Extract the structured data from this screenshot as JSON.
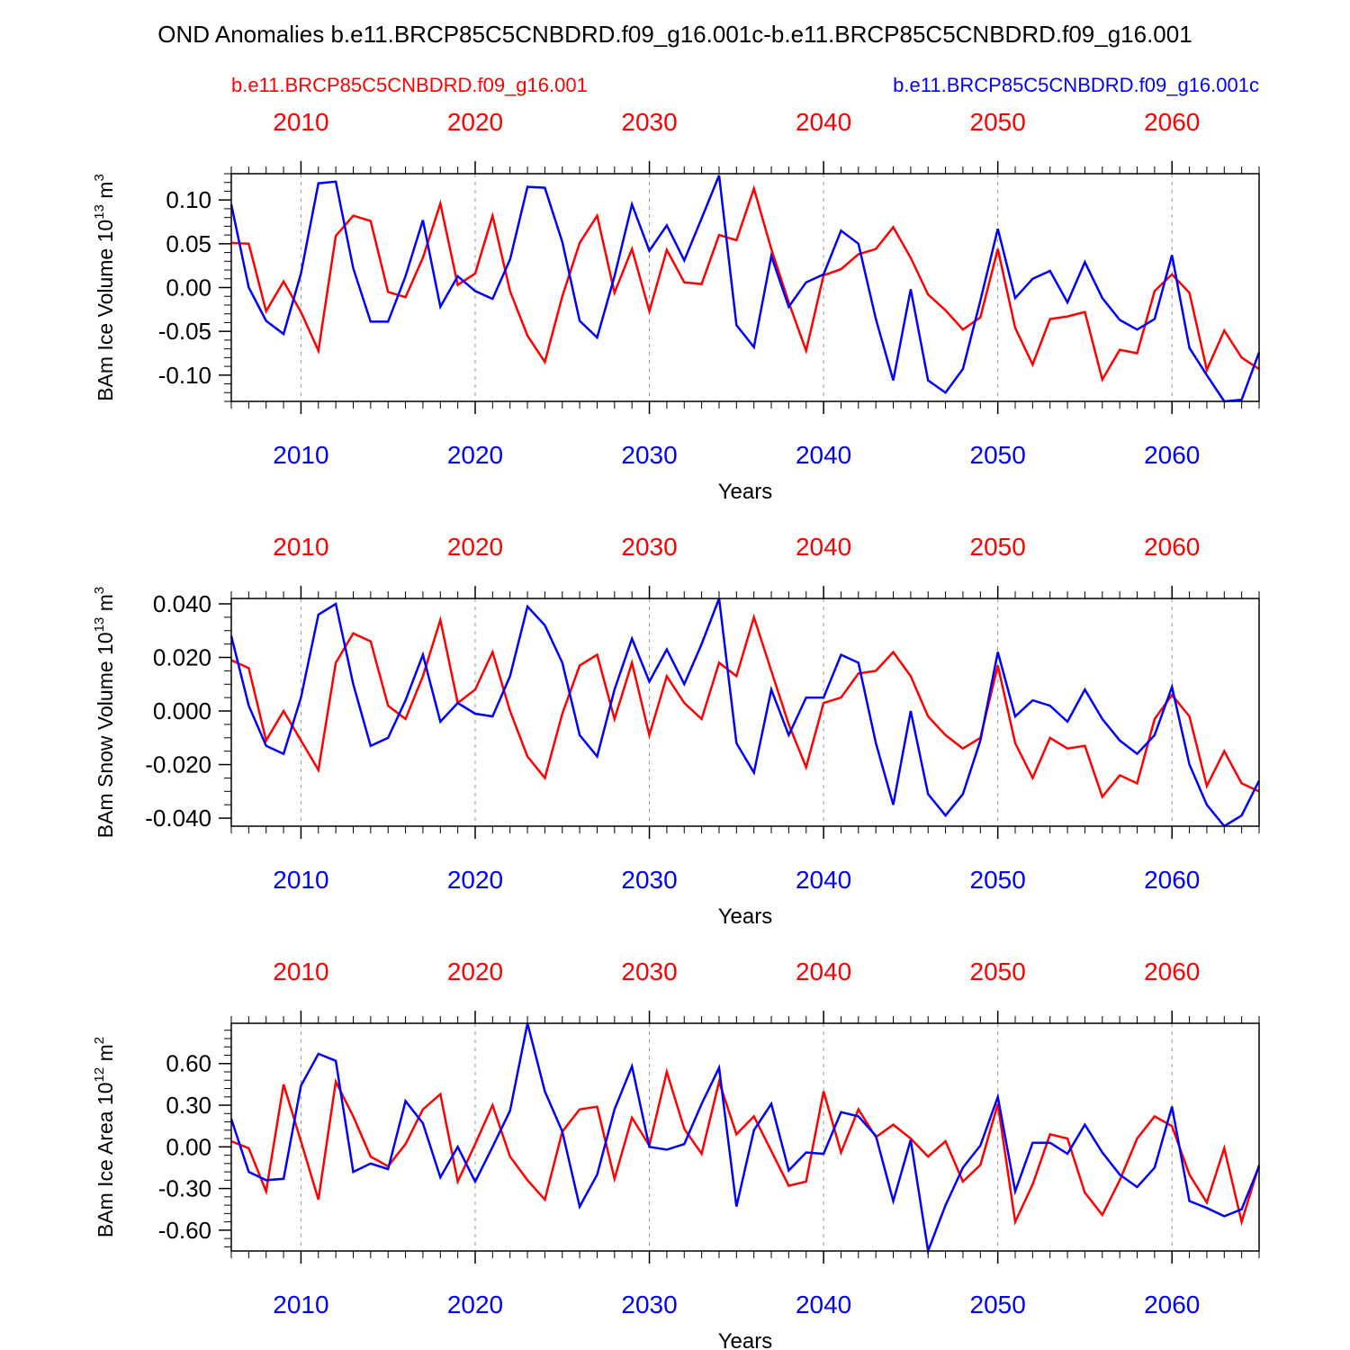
{
  "header": {
    "title": "OND Anomalies b.e11.BRCP85C5CNBDRD.f09_g16.001c-b.e11.BRCP85C5CNBDRD.f09_g16.001",
    "legend_left": "b.e11.BRCP85C5CNBDRD.f09_g16.001",
    "legend_right": "b.e11.BRCP85C5CNBDRD.f09_g16.001c"
  },
  "colors": {
    "red": "#ff0000",
    "blue": "#0000ff",
    "axis": "#000000",
    "grid": "#999999"
  },
  "chart_data": [
    {
      "type": "line",
      "ylabel_main": "BAm Ice Volume 10",
      "ylabel_exp": "13",
      "ylabel_unit": " m",
      "ylabel_unit_exp": "3",
      "xlabel": "Years",
      "xlim": [
        2006,
        2065
      ],
      "ylim": [
        -0.13,
        0.13
      ],
      "yticks": [
        -0.1,
        -0.05,
        0.0,
        0.05,
        0.1
      ],
      "ytick_labels": [
        "-0.10",
        "-0.05",
        "0.00",
        "0.05",
        "0.10"
      ],
      "yminor_step": 0.01,
      "xticks": [
        2010,
        2020,
        2030,
        2040,
        2050,
        2060
      ],
      "xtick_labels": [
        "2010",
        "2020",
        "2030",
        "2040",
        "2050",
        "2060"
      ],
      "x_start": 2006,
      "series": [
        {
          "name": "b.e11.BRCP85C5CNBDRD.f09_g16.001",
          "color": "#ff0000",
          "values": [
            0.051,
            0.05,
            -0.027,
            0.007,
            -0.028,
            -0.072,
            0.059,
            0.082,
            0.076,
            -0.005,
            -0.011,
            0.034,
            0.096,
            0.003,
            0.016,
            0.082,
            -0.004,
            -0.055,
            -0.085,
            -0.01,
            0.051,
            0.082,
            -0.006,
            0.044,
            -0.027,
            0.043,
            0.006,
            0.004,
            0.06,
            0.054,
            0.113,
            0.044,
            -0.017,
            -0.072,
            0.014,
            0.021,
            0.038,
            0.044,
            0.069,
            0.034,
            -0.008,
            -0.026,
            -0.048,
            -0.034,
            0.044,
            -0.046,
            -0.088,
            -0.036,
            -0.033,
            -0.028,
            -0.105,
            -0.071,
            -0.075,
            -0.004,
            0.015,
            -0.006,
            -0.094,
            -0.049,
            -0.08,
            -0.093
          ]
        },
        {
          "name": "b.e11.BRCP85C5CNBDRD.f09_g16.001c",
          "color": "#0000ff",
          "values": [
            0.095,
            0.0,
            -0.038,
            -0.053,
            0.016,
            0.119,
            0.121,
            0.022,
            -0.039,
            -0.039,
            0.013,
            0.077,
            -0.022,
            0.013,
            -0.004,
            -0.013,
            0.032,
            0.115,
            0.114,
            0.052,
            -0.038,
            -0.057,
            0.013,
            0.095,
            0.042,
            0.071,
            0.031,
            0.079,
            0.128,
            -0.043,
            -0.068,
            0.036,
            -0.022,
            0.006,
            0.015,
            0.065,
            0.05,
            -0.036,
            -0.106,
            -0.002,
            -0.106,
            -0.12,
            -0.093,
            -0.015,
            0.067,
            -0.012,
            0.01,
            0.019,
            -0.017,
            0.029,
            -0.012,
            -0.037,
            -0.048,
            -0.036,
            0.037,
            -0.069,
            -0.1,
            -0.131,
            -0.128,
            -0.074
          ]
        }
      ]
    },
    {
      "type": "line",
      "ylabel_main": "BAm Snow Volume 10",
      "ylabel_exp": "13",
      "ylabel_unit": " m",
      "ylabel_unit_exp": "3",
      "xlabel": "Years",
      "xlim": [
        2006,
        2065
      ],
      "ylim": [
        -0.043,
        0.042
      ],
      "yticks": [
        -0.04,
        -0.02,
        0.0,
        0.02,
        0.04
      ],
      "ytick_labels": [
        "-0.040",
        "-0.020",
        "0.000",
        "0.020",
        "0.040"
      ],
      "yminor_step": 0.005,
      "xticks": [
        2010,
        2020,
        2030,
        2040,
        2050,
        2060
      ],
      "xtick_labels": [
        "2010",
        "2020",
        "2030",
        "2040",
        "2050",
        "2060"
      ],
      "x_start": 2006,
      "series": [
        {
          "name": "b.e11.BRCP85C5CNBDRD.f09_g16.001",
          "color": "#ff0000",
          "values": [
            0.019,
            0.016,
            -0.011,
            0.0,
            -0.011,
            -0.022,
            0.018,
            0.029,
            0.026,
            0.002,
            -0.003,
            0.013,
            0.034,
            0.003,
            0.008,
            0.022,
            0.0,
            -0.017,
            -0.025,
            -0.001,
            0.017,
            0.021,
            -0.003,
            0.018,
            -0.009,
            0.013,
            0.003,
            -0.003,
            0.018,
            0.013,
            0.035,
            0.015,
            -0.005,
            -0.021,
            0.003,
            0.005,
            0.014,
            0.015,
            0.022,
            0.013,
            -0.002,
            -0.009,
            -0.014,
            -0.01,
            0.017,
            -0.012,
            -0.025,
            -0.01,
            -0.014,
            -0.013,
            -0.032,
            -0.024,
            -0.027,
            -0.003,
            0.006,
            -0.002,
            -0.028,
            -0.015,
            -0.027,
            -0.03
          ]
        },
        {
          "name": "b.e11.BRCP85C5CNBDRD.f09_g16.001c",
          "color": "#0000ff",
          "values": [
            0.028,
            0.002,
            -0.013,
            -0.016,
            0.005,
            0.036,
            0.04,
            0.01,
            -0.013,
            -0.01,
            0.004,
            0.021,
            -0.004,
            0.003,
            -0.001,
            -0.002,
            0.013,
            0.039,
            0.032,
            0.018,
            -0.009,
            -0.017,
            0.008,
            0.027,
            0.011,
            0.023,
            0.01,
            0.025,
            0.042,
            -0.012,
            -0.023,
            0.008,
            -0.009,
            0.005,
            0.005,
            0.021,
            0.018,
            -0.012,
            -0.035,
            0.0,
            -0.031,
            -0.039,
            -0.031,
            -0.011,
            0.022,
            -0.002,
            0.004,
            0.002,
            -0.004,
            0.008,
            -0.003,
            -0.011,
            -0.016,
            -0.009,
            0.009,
            -0.02,
            -0.035,
            -0.043,
            -0.039,
            -0.026
          ]
        }
      ]
    },
    {
      "type": "line",
      "ylabel_main": "BAm Ice Area 10",
      "ylabel_exp": "12",
      "ylabel_unit": " m",
      "ylabel_unit_exp": "2",
      "xlabel": "Years",
      "xlim": [
        2006,
        2065
      ],
      "ylim": [
        -0.75,
        0.89
      ],
      "yticks": [
        -0.6,
        -0.3,
        0.0,
        0.3,
        0.6
      ],
      "ytick_labels": [
        "-0.60",
        "-0.30",
        "0.00",
        "0.30",
        "0.60"
      ],
      "yminor_step": 0.06,
      "xticks": [
        2010,
        2020,
        2030,
        2040,
        2050,
        2060
      ],
      "xtick_labels": [
        "2010",
        "2020",
        "2030",
        "2040",
        "2050",
        "2060"
      ],
      "x_start": 2006,
      "series": [
        {
          "name": "b.e11.BRCP85C5CNBDRD.f09_g16.001",
          "color": "#ff0000",
          "values": [
            0.04,
            -0.01,
            -0.32,
            0.45,
            0.04,
            -0.38,
            0.47,
            0.22,
            -0.07,
            -0.14,
            0.02,
            0.27,
            0.38,
            -0.25,
            0.02,
            0.3,
            -0.07,
            -0.24,
            -0.38,
            0.11,
            0.27,
            0.29,
            -0.23,
            0.21,
            0.01,
            0.54,
            0.13,
            -0.05,
            0.47,
            0.09,
            0.22,
            -0.03,
            -0.28,
            -0.25,
            0.4,
            -0.04,
            0.27,
            0.07,
            0.16,
            0.06,
            -0.07,
            0.04,
            -0.25,
            -0.13,
            0.31,
            -0.54,
            -0.27,
            0.09,
            0.06,
            -0.33,
            -0.49,
            -0.24,
            0.06,
            0.22,
            0.15,
            -0.2,
            -0.4,
            -0.01,
            -0.54,
            -0.13
          ]
        },
        {
          "name": "b.e11.BRCP85C5CNBDRD.f09_g16.001c",
          "color": "#0000ff",
          "values": [
            0.2,
            -0.18,
            -0.24,
            -0.23,
            0.44,
            0.67,
            0.62,
            -0.18,
            -0.12,
            -0.16,
            0.33,
            0.17,
            -0.22,
            0.0,
            -0.25,
            0.0,
            0.26,
            0.89,
            0.4,
            0.11,
            -0.43,
            -0.2,
            0.27,
            0.58,
            0.0,
            -0.02,
            0.02,
            0.31,
            0.57,
            -0.43,
            0.12,
            0.31,
            -0.17,
            -0.04,
            -0.05,
            0.25,
            0.22,
            0.08,
            -0.39,
            0.05,
            -0.75,
            -0.42,
            -0.15,
            0.01,
            0.36,
            -0.32,
            0.03,
            0.03,
            -0.05,
            0.16,
            -0.04,
            -0.2,
            -0.29,
            -0.15,
            0.29,
            -0.39,
            -0.44,
            -0.5,
            -0.45,
            -0.14
          ]
        }
      ]
    }
  ]
}
